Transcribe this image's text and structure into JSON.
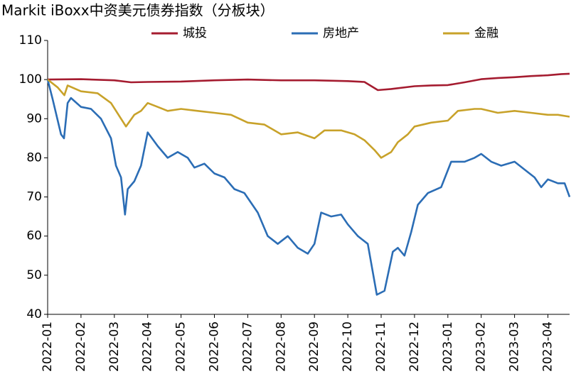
{
  "chart_data": {
    "type": "line",
    "title": "Markit iBoxx中资美元债券指数（分板块）",
    "xlim": [
      0,
      15.65
    ],
    "xticks": [
      {
        "value": 0,
        "label": "2022-01"
      },
      {
        "value": 1,
        "label": "2022-02"
      },
      {
        "value": 2,
        "label": "2022-03"
      },
      {
        "value": 3,
        "label": "2022-04"
      },
      {
        "value": 4,
        "label": "2022-05"
      },
      {
        "value": 5,
        "label": "2022-06"
      },
      {
        "value": 6,
        "label": "2022-07"
      },
      {
        "value": 7,
        "label": "2022-08"
      },
      {
        "value": 8,
        "label": "2022-09"
      },
      {
        "value": 9,
        "label": "2022-10"
      },
      {
        "value": 10,
        "label": "2022-11"
      },
      {
        "value": 11,
        "label": "2022-12"
      },
      {
        "value": 12,
        "label": "2023-01"
      },
      {
        "value": 13,
        "label": "2023-02"
      },
      {
        "value": 14,
        "label": "2023-03"
      },
      {
        "value": 15,
        "label": "2023-04"
      }
    ],
    "ylim": [
      40,
      110
    ],
    "yticks": [
      40,
      50,
      60,
      70,
      80,
      90,
      100,
      110
    ],
    "legend": "top",
    "series": [
      {
        "name": "城投",
        "color": "#a51c30",
        "x": [
          0,
          1,
          2,
          2.5,
          3,
          4,
          5,
          6,
          7,
          8,
          9,
          9.5,
          9.9,
          10.3,
          11,
          11.5,
          12,
          12.5,
          13,
          13.5,
          14,
          14.5,
          15,
          15.4,
          15.65
        ],
        "values": [
          100,
          100.1,
          99.8,
          99.3,
          99.4,
          99.5,
          99.8,
          100,
          99.8,
          99.8,
          99.6,
          99.4,
          97.3,
          97.6,
          98.3,
          98.5,
          98.6,
          99.3,
          100.1,
          100.4,
          100.6,
          100.9,
          101.1,
          101.4,
          101.5
        ]
      },
      {
        "name": "房地产",
        "color": "#2b6db5",
        "x": [
          0,
          0.15,
          0.4,
          0.49,
          0.6,
          0.7,
          1,
          1.3,
          1.6,
          1.9,
          2.05,
          2.2,
          2.32,
          2.4,
          2.6,
          2.8,
          3,
          3.3,
          3.6,
          3.9,
          4.2,
          4.4,
          4.7,
          5,
          5.3,
          5.6,
          5.9,
          6.3,
          6.6,
          6.9,
          7.2,
          7.5,
          7.8,
          8,
          8.2,
          8.5,
          8.8,
          9,
          9.3,
          9.6,
          9.87,
          10.1,
          10.35,
          10.5,
          10.7,
          10.9,
          11.1,
          11.4,
          11.8,
          12.1,
          12.5,
          12.8,
          13,
          13.3,
          13.6,
          14,
          14.3,
          14.6,
          14.8,
          15,
          15.3,
          15.5,
          15.65
        ],
        "values": [
          100,
          95,
          86,
          85,
          94,
          95.3,
          93,
          92.5,
          90,
          85,
          78,
          75,
          65.5,
          72,
          74,
          78,
          86.5,
          83,
          80,
          81.5,
          80,
          77.5,
          78.5,
          76,
          75,
          72,
          71,
          66,
          60,
          58,
          60,
          57,
          55.5,
          58,
          66,
          65,
          65.5,
          63,
          60,
          58,
          45,
          46,
          56,
          57,
          55,
          61,
          68,
          71,
          72.5,
          79,
          79,
          80,
          81,
          79,
          78,
          79,
          77,
          75,
          72.5,
          74.5,
          73.5,
          73.5,
          70
        ]
      },
      {
        "name": "金融",
        "color": "#c8a22a",
        "x": [
          0,
          0.3,
          0.5,
          0.6,
          1,
          1.5,
          1.9,
          2.2,
          2.35,
          2.6,
          2.8,
          3,
          3.3,
          3.6,
          4,
          4.5,
          5,
          5.5,
          6,
          6.5,
          7,
          7.5,
          8,
          8.3,
          8.8,
          9.2,
          9.5,
          9.8,
          10,
          10.3,
          10.5,
          10.8,
          11,
          11.5,
          12,
          12.3,
          12.8,
          13,
          13.5,
          14,
          14.5,
          15,
          15.3,
          15.65
        ],
        "values": [
          100,
          98,
          96,
          98.5,
          97,
          96.5,
          94,
          90,
          88,
          91,
          92,
          94,
          93,
          92,
          92.5,
          92,
          91.5,
          91,
          89,
          88.5,
          86,
          86.5,
          85,
          87,
          87,
          86,
          84.5,
          82,
          80,
          81.5,
          84,
          86,
          88,
          89,
          89.5,
          92,
          92.5,
          92.5,
          91.5,
          92,
          91.5,
          91,
          91,
          90.5
        ]
      }
    ]
  }
}
